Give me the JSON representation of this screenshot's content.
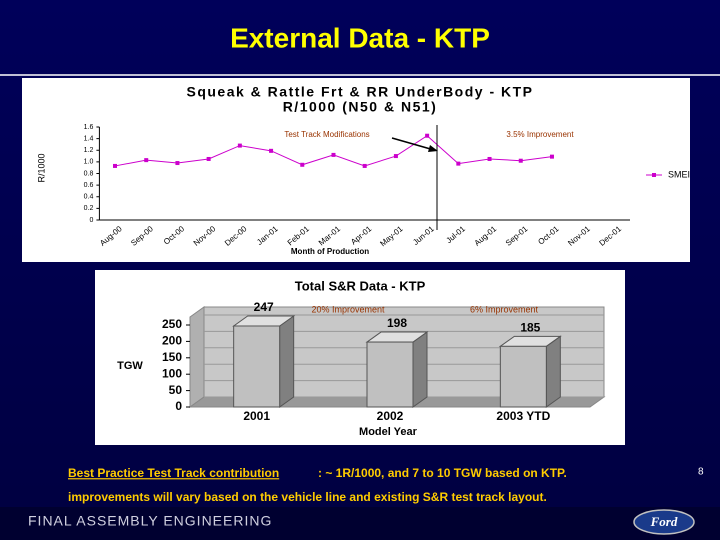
{
  "slide_title": "External Data - KTP",
  "footer": {
    "link": "Best Practice Test Track contribution",
    "line1_rest": ": ~ 1R/1000, and 7 to 10 TGW based on KTP.",
    "line2": "improvements will vary based on the vehicle line and existing S&R test track layout."
  },
  "page_number": "8",
  "brand": "FINAL ASSEMBLY ENGINEERING",
  "logo": "Ford",
  "chart_data": [
    {
      "type": "line",
      "title": "Squeak & Rattle Frt & RR UnderBody - KTP",
      "subtitle": "R/1000 (N50 & N51)",
      "y_label": "R/1000",
      "x_label": "Month of Production",
      "categories": [
        "Aug-00",
        "Sep-00",
        "Oct-00",
        "Nov-00",
        "Dec-00",
        "Jan-01",
        "Feb-01",
        "Mar-01",
        "Apr-01",
        "May-01",
        "Jun-01",
        "Jul-01",
        "Aug-01",
        "Sep-01",
        "Oct-01",
        "Nov-01",
        "Dec-01"
      ],
      "series": [
        {
          "name": "SMEI",
          "color": "#cc00cc",
          "values": [
            0.93,
            1.03,
            0.98,
            1.05,
            1.28,
            1.19,
            0.95,
            1.12,
            0.93,
            1.1,
            1.45,
            0.97,
            1.05,
            1.02,
            1.09,
            null,
            null
          ]
        }
      ],
      "ylim": [
        0,
        1.6
      ],
      "yticks": [
        0,
        0.2,
        0.4,
        0.6,
        0.8,
        {
          "value": 1,
          "label": "1.0"
        },
        1.2,
        1.4,
        1.6
      ],
      "annotations": [
        "Test Track Modifications",
        "3.5% Improvement"
      ],
      "legend": "right"
    },
    {
      "type": "bar3d",
      "title": "Total S&R Data - KTP",
      "y_label": "TGW",
      "x_label": "Model Year",
      "categories": [
        "2001",
        "2002",
        "2003 YTD"
      ],
      "values": [
        247,
        198,
        185
      ],
      "color": "#c0c0c0",
      "ylim": [
        0,
        250
      ],
      "yticks": [
        0,
        50,
        100,
        150,
        200,
        250
      ],
      "annotations": [
        "20% Improvement",
        "6% Improvement"
      ]
    }
  ]
}
